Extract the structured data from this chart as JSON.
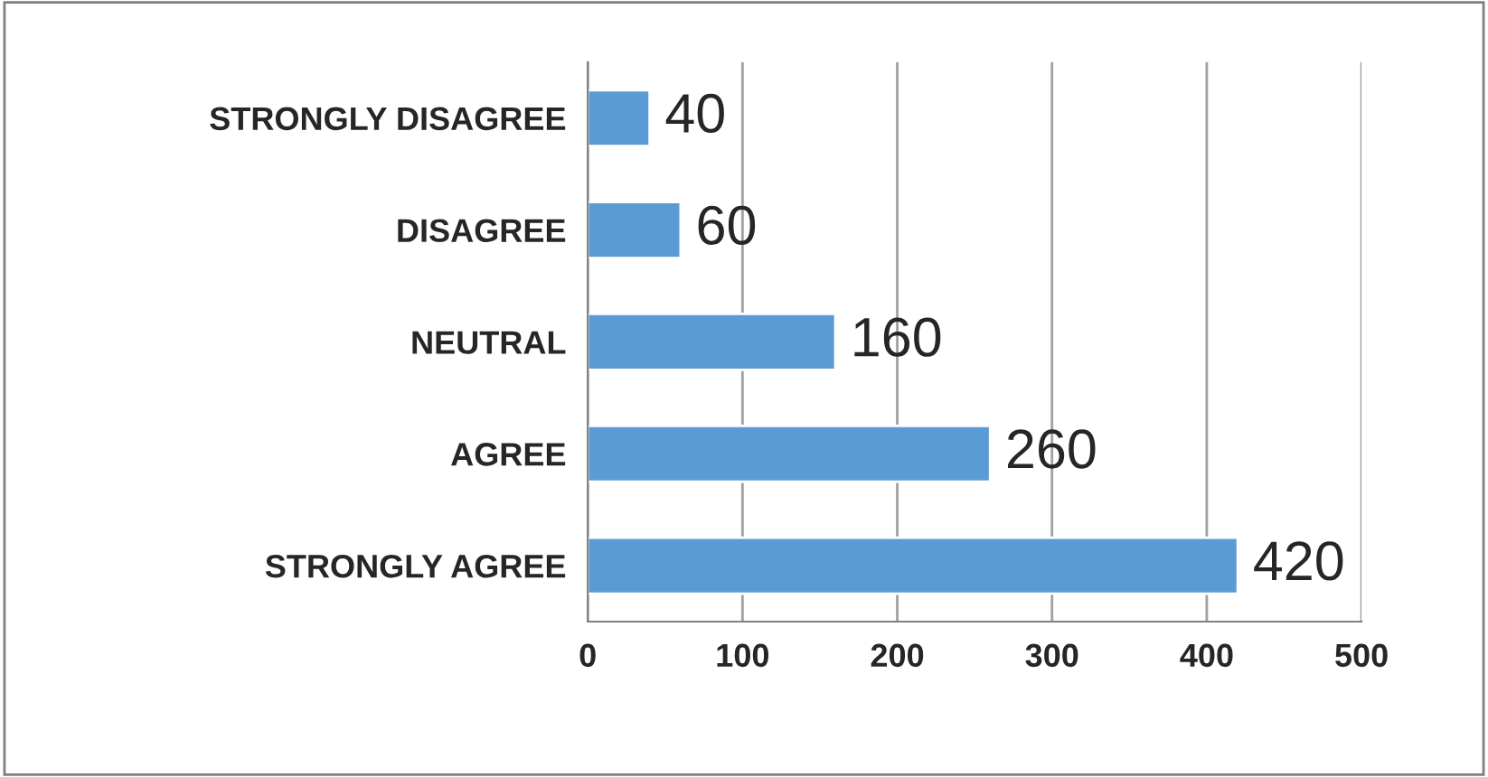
{
  "chart_data": {
    "type": "bar",
    "orientation": "horizontal",
    "categories": [
      "STRONGLY DISAGREE",
      "DISAGREE",
      "NEUTRAL",
      "AGREE",
      "STRONGLY AGREE"
    ],
    "values": [
      40,
      60,
      160,
      260,
      420
    ],
    "color": "#5b9bd5",
    "xlim": [
      0,
      500
    ],
    "xticks": [
      0,
      100,
      200,
      300,
      400,
      500
    ],
    "grid": "x",
    "data_labels": true
  }
}
